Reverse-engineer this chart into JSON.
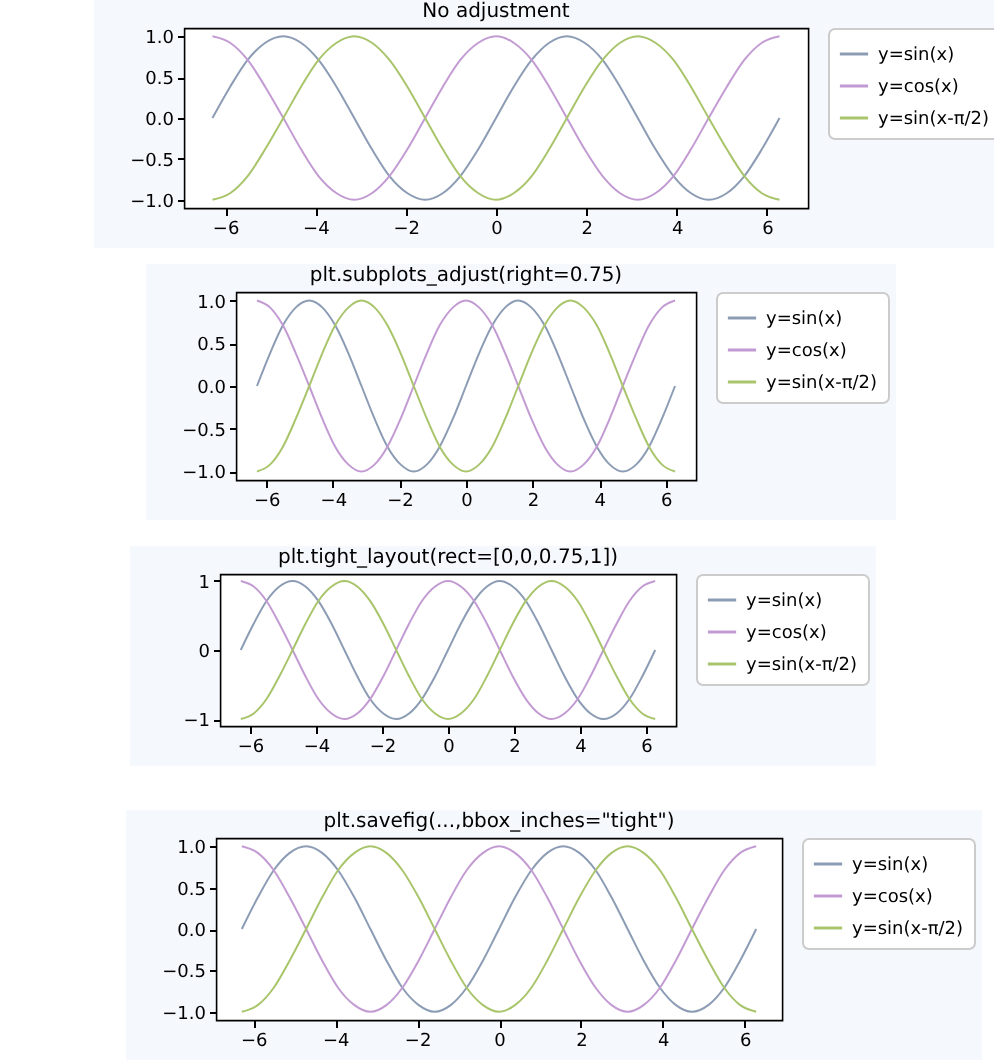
{
  "chart_data": [
    {
      "type": "line",
      "title": "No adjustment",
      "legend": "right",
      "grid": false,
      "x": [
        -6.28,
        -5.89,
        -5.5,
        -5.11,
        -4.71,
        -4.32,
        -3.93,
        -3.53,
        -3.14,
        -2.75,
        -2.36,
        -1.96,
        -1.57,
        -1.18,
        -0.79,
        -0.39,
        0,
        0.39,
        0.79,
        1.18,
        1.57,
        1.96,
        2.36,
        2.75,
        3.14,
        3.53,
        3.93,
        4.32,
        4.71,
        5.11,
        5.5,
        5.89,
        6.28
      ],
      "xlim": [
        -6.91,
        6.91
      ],
      "ylim": [
        -1.1,
        1.1
      ],
      "xticks": [
        {
          "value": -6,
          "label": "−6"
        },
        {
          "value": -4,
          "label": "−4"
        },
        {
          "value": -2,
          "label": "−2"
        },
        0,
        2,
        4,
        6
      ],
      "yticks": [
        {
          "value": -1,
          "label": "−1.0"
        },
        {
          "value": -0.5,
          "label": "−0.5"
        },
        {
          "value": 0,
          "label": "0.0"
        },
        {
          "value": 0.5,
          "label": "0.5"
        },
        {
          "value": 1,
          "label": "1.0"
        }
      ],
      "series": [
        {
          "name": "y=sin(x)",
          "color": "#8c9cb4",
          "values": [
            0,
            0.38,
            0.71,
            0.92,
            1,
            0.92,
            0.71,
            0.38,
            0,
            -0.38,
            -0.71,
            -0.92,
            -1,
            -0.92,
            -0.71,
            -0.38,
            0,
            0.38,
            0.71,
            0.92,
            1,
            0.92,
            0.71,
            0.38,
            0,
            -0.38,
            -0.71,
            -0.92,
            -1,
            -0.92,
            -0.71,
            -0.38,
            0
          ]
        },
        {
          "name": "y=cos(x)",
          "color": "#c39bd3",
          "values": [
            1,
            0.92,
            0.71,
            0.38,
            0,
            -0.38,
            -0.71,
            -0.92,
            -1,
            -0.92,
            -0.71,
            -0.38,
            0,
            0.38,
            0.71,
            0.92,
            1,
            0.92,
            0.71,
            0.38,
            0,
            -0.38,
            -0.71,
            -0.92,
            -1,
            -0.92,
            -0.71,
            -0.38,
            0,
            0.38,
            0.71,
            0.92,
            1
          ]
        },
        {
          "name": "y=sin(x-π/2)",
          "color": "#a9c56b",
          "values": [
            -1,
            -0.92,
            -0.71,
            -0.38,
            0,
            0.38,
            0.71,
            0.92,
            1,
            0.92,
            0.71,
            0.38,
            0,
            -0.38,
            -0.71,
            -0.92,
            -1,
            -0.92,
            -0.71,
            -0.38,
            0,
            0.38,
            0.71,
            0.92,
            1,
            0.92,
            0.71,
            0.38,
            0,
            -0.38,
            -0.71,
            -0.92,
            -1
          ]
        }
      ]
    },
    {
      "type": "line",
      "title": "plt.subplots_adjust(right=0.75)",
      "legend": "right",
      "grid": false,
      "x": [
        -6.28,
        -5.89,
        -5.5,
        -5.11,
        -4.71,
        -4.32,
        -3.93,
        -3.53,
        -3.14,
        -2.75,
        -2.36,
        -1.96,
        -1.57,
        -1.18,
        -0.79,
        -0.39,
        0,
        0.39,
        0.79,
        1.18,
        1.57,
        1.96,
        2.36,
        2.75,
        3.14,
        3.53,
        3.93,
        4.32,
        4.71,
        5.11,
        5.5,
        5.89,
        6.28
      ],
      "xlim": [
        -6.91,
        6.91
      ],
      "ylim": [
        -1.1,
        1.1
      ],
      "xticks": [
        {
          "value": -6,
          "label": "−6"
        },
        {
          "value": -4,
          "label": "−4"
        },
        {
          "value": -2,
          "label": "−2"
        },
        0,
        2,
        4,
        6
      ],
      "yticks": [
        {
          "value": -1,
          "label": "−1.0"
        },
        {
          "value": -0.5,
          "label": "−0.5"
        },
        {
          "value": 0,
          "label": "0.0"
        },
        {
          "value": 0.5,
          "label": "0.5"
        },
        {
          "value": 1,
          "label": "1.0"
        }
      ],
      "series": [
        {
          "name": "y=sin(x)",
          "color": "#8c9cb4",
          "values": [
            0,
            0.38,
            0.71,
            0.92,
            1,
            0.92,
            0.71,
            0.38,
            0,
            -0.38,
            -0.71,
            -0.92,
            -1,
            -0.92,
            -0.71,
            -0.38,
            0,
            0.38,
            0.71,
            0.92,
            1,
            0.92,
            0.71,
            0.38,
            0,
            -0.38,
            -0.71,
            -0.92,
            -1,
            -0.92,
            -0.71,
            -0.38,
            0
          ]
        },
        {
          "name": "y=cos(x)",
          "color": "#c39bd3",
          "values": [
            1,
            0.92,
            0.71,
            0.38,
            0,
            -0.38,
            -0.71,
            -0.92,
            -1,
            -0.92,
            -0.71,
            -0.38,
            0,
            0.38,
            0.71,
            0.92,
            1,
            0.92,
            0.71,
            0.38,
            0,
            -0.38,
            -0.71,
            -0.92,
            -1,
            -0.92,
            -0.71,
            -0.38,
            0,
            0.38,
            0.71,
            0.92,
            1
          ]
        },
        {
          "name": "y=sin(x-π/2)",
          "color": "#a9c56b",
          "values": [
            -1,
            -0.92,
            -0.71,
            -0.38,
            0,
            0.38,
            0.71,
            0.92,
            1,
            0.92,
            0.71,
            0.38,
            0,
            -0.38,
            -0.71,
            -0.92,
            -1,
            -0.92,
            -0.71,
            -0.38,
            0,
            0.38,
            0.71,
            0.92,
            1,
            0.92,
            0.71,
            0.38,
            0,
            -0.38,
            -0.71,
            -0.92,
            -1
          ]
        }
      ]
    },
    {
      "type": "line",
      "title": "plt.tight_layout(rect=[0,0,0.75,1])",
      "legend": "right",
      "grid": false,
      "x": [
        -6.28,
        -5.89,
        -5.5,
        -5.11,
        -4.71,
        -4.32,
        -3.93,
        -3.53,
        -3.14,
        -2.75,
        -2.36,
        -1.96,
        -1.57,
        -1.18,
        -0.79,
        -0.39,
        0,
        0.39,
        0.79,
        1.18,
        1.57,
        1.96,
        2.36,
        2.75,
        3.14,
        3.53,
        3.93,
        4.32,
        4.71,
        5.11,
        5.5,
        5.89,
        6.28
      ],
      "xlim": [
        -6.91,
        6.91
      ],
      "ylim": [
        -1.1,
        1.1
      ],
      "xticks": [
        {
          "value": -6,
          "label": "−6"
        },
        {
          "value": -4,
          "label": "−4"
        },
        {
          "value": -2,
          "label": "−2"
        },
        0,
        2,
        4,
        6
      ],
      "yticks": [
        {
          "value": -1,
          "label": "−1"
        },
        0,
        1
      ],
      "series": [
        {
          "name": "y=sin(x)",
          "color": "#8c9cb4",
          "values": [
            0,
            0.38,
            0.71,
            0.92,
            1,
            0.92,
            0.71,
            0.38,
            0,
            -0.38,
            -0.71,
            -0.92,
            -1,
            -0.92,
            -0.71,
            -0.38,
            0,
            0.38,
            0.71,
            0.92,
            1,
            0.92,
            0.71,
            0.38,
            0,
            -0.38,
            -0.71,
            -0.92,
            -1,
            -0.92,
            -0.71,
            -0.38,
            0
          ]
        },
        {
          "name": "y=cos(x)",
          "color": "#c39bd3",
          "values": [
            1,
            0.92,
            0.71,
            0.38,
            0,
            -0.38,
            -0.71,
            -0.92,
            -1,
            -0.92,
            -0.71,
            -0.38,
            0,
            0.38,
            0.71,
            0.92,
            1,
            0.92,
            0.71,
            0.38,
            0,
            -0.38,
            -0.71,
            -0.92,
            -1,
            -0.92,
            -0.71,
            -0.38,
            0,
            0.38,
            0.71,
            0.92,
            1
          ]
        },
        {
          "name": "y=sin(x-π/2)",
          "color": "#a9c56b",
          "values": [
            -1,
            -0.92,
            -0.71,
            -0.38,
            0,
            0.38,
            0.71,
            0.92,
            1,
            0.92,
            0.71,
            0.38,
            0,
            -0.38,
            -0.71,
            -0.92,
            -1,
            -0.92,
            -0.71,
            -0.38,
            0,
            0.38,
            0.71,
            0.92,
            1,
            0.92,
            0.71,
            0.38,
            0,
            -0.38,
            -0.71,
            -0.92,
            -1
          ]
        }
      ]
    },
    {
      "type": "line",
      "title": "plt.savefig(...,bbox_inches=\"tight\")",
      "legend": "right",
      "grid": false,
      "x": [
        -6.28,
        -5.89,
        -5.5,
        -5.11,
        -4.71,
        -4.32,
        -3.93,
        -3.53,
        -3.14,
        -2.75,
        -2.36,
        -1.96,
        -1.57,
        -1.18,
        -0.79,
        -0.39,
        0,
        0.39,
        0.79,
        1.18,
        1.57,
        1.96,
        2.36,
        2.75,
        3.14,
        3.53,
        3.93,
        4.32,
        4.71,
        5.11,
        5.5,
        5.89,
        6.28
      ],
      "xlim": [
        -6.91,
        6.91
      ],
      "ylim": [
        -1.1,
        1.1
      ],
      "xticks": [
        {
          "value": -6,
          "label": "−6"
        },
        {
          "value": -4,
          "label": "−4"
        },
        {
          "value": -2,
          "label": "−2"
        },
        0,
        2,
        4,
        6
      ],
      "yticks": [
        {
          "value": -1,
          "label": "−1.0"
        },
        {
          "value": -0.5,
          "label": "−0.5"
        },
        {
          "value": 0,
          "label": "0.0"
        },
        {
          "value": 0.5,
          "label": "0.5"
        },
        {
          "value": 1,
          "label": "1.0"
        }
      ],
      "series": [
        {
          "name": "y=sin(x)",
          "color": "#8c9cb4",
          "values": [
            0,
            0.38,
            0.71,
            0.92,
            1,
            0.92,
            0.71,
            0.38,
            0,
            -0.38,
            -0.71,
            -0.92,
            -1,
            -0.92,
            -0.71,
            -0.38,
            0,
            0.38,
            0.71,
            0.92,
            1,
            0.92,
            0.71,
            0.38,
            0,
            -0.38,
            -0.71,
            -0.92,
            -1,
            -0.92,
            -0.71,
            -0.38,
            0
          ]
        },
        {
          "name": "y=cos(x)",
          "color": "#c39bd3",
          "values": [
            1,
            0.92,
            0.71,
            0.38,
            0,
            -0.38,
            -0.71,
            -0.92,
            -1,
            -0.92,
            -0.71,
            -0.38,
            0,
            0.38,
            0.71,
            0.92,
            1,
            0.92,
            0.71,
            0.38,
            0,
            -0.38,
            -0.71,
            -0.92,
            -1,
            -0.92,
            -0.71,
            -0.38,
            0,
            0.38,
            0.71,
            0.92,
            1
          ]
        },
        {
          "name": "y=sin(x-π/2)",
          "color": "#a9c56b",
          "values": [
            -1,
            -0.92,
            -0.71,
            -0.38,
            0,
            0.38,
            0.71,
            0.92,
            1,
            0.92,
            0.71,
            0.38,
            0,
            -0.38,
            -0.71,
            -0.92,
            -1,
            -0.92,
            -0.71,
            -0.38,
            0,
            0.38,
            0.71,
            0.92,
            1,
            0.92,
            0.71,
            0.38,
            0,
            -0.38,
            -0.71,
            -0.92,
            -1
          ]
        }
      ]
    }
  ]
}
